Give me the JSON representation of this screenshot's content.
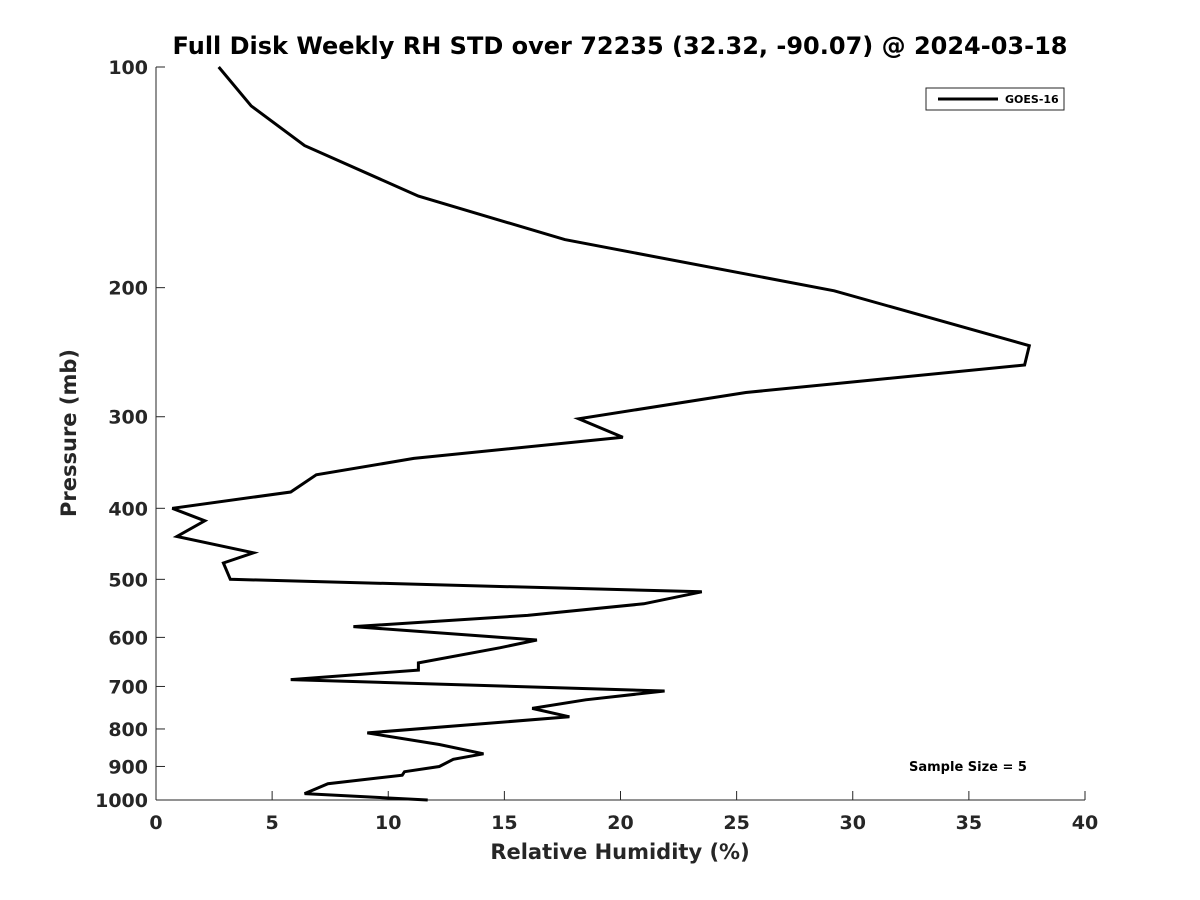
{
  "chart_data": {
    "type": "line",
    "title": "Full Disk Weekly RH STD over 72235 (32.32, -90.07) @ 2024-03-18",
    "xlabel": "Relative Humidity (%)",
    "ylabel": "Pressure (mb)",
    "xlim": [
      0,
      40
    ],
    "ylim": [
      100,
      1000
    ],
    "yscale": "log",
    "y_reversed": true,
    "x_ticks": [
      0,
      5,
      10,
      15,
      20,
      25,
      30,
      35,
      40
    ],
    "y_ticks": [
      100,
      200,
      300,
      400,
      500,
      600,
      700,
      800,
      900,
      1000
    ],
    "grid": false,
    "legend_position": "top-right",
    "series": [
      {
        "name": "GOES-16",
        "color": "#000000",
        "x": [
          2.7,
          4.1,
          6.4,
          11.3,
          17.6,
          29.2,
          37.6,
          37.4,
          25.4,
          18.2,
          20.1,
          11.1,
          6.9,
          5.8,
          0.7,
          2.1,
          0.9,
          4.2,
          2.9,
          3.2,
          23.5,
          21.0,
          16.0,
          8.5,
          16.4,
          14.8,
          11.3,
          11.3,
          5.8,
          21.9,
          18.5,
          16.2,
          17.8,
          9.1,
          12.2,
          14.1,
          12.8,
          12.2,
          10.7,
          10.6,
          7.4,
          6.4,
          11.7
        ],
        "y": [
          100,
          113,
          128,
          150,
          172,
          202,
          240,
          255,
          278,
          302,
          320,
          342,
          360,
          380,
          400,
          416,
          437,
          460,
          475,
          500,
          520,
          540,
          560,
          580,
          605,
          620,
          650,
          665,
          685,
          710,
          730,
          750,
          770,
          810,
          840,
          865,
          880,
          900,
          915,
          925,
          950,
          980,
          1000
        ]
      }
    ],
    "annotations": [
      {
        "text": "Sample Size = 5",
        "position": "bottom-right"
      }
    ],
    "legend_entries": [
      "GOES-16"
    ]
  }
}
